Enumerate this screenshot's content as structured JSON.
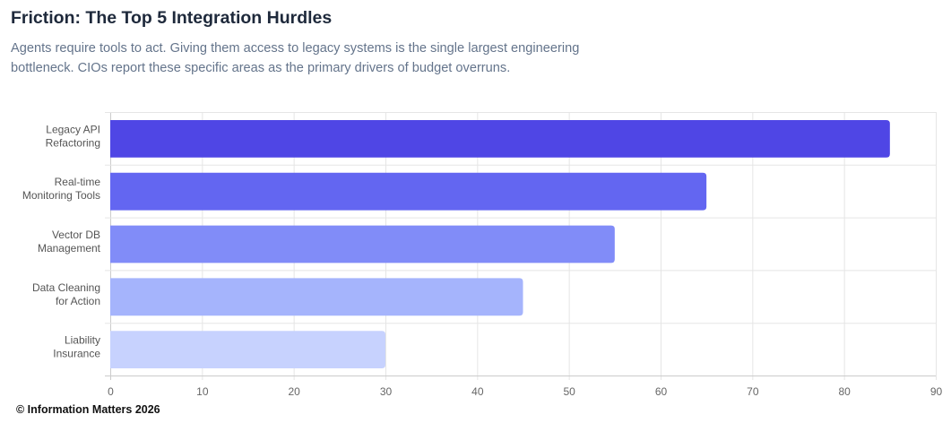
{
  "header": {
    "title": "Friction: The Top 5 Integration Hurdles",
    "subtitle": "Agents require tools to act. Giving them access to legacy systems is the single largest engineering bottleneck. CIOs report these specific areas as the primary drivers of budget overruns."
  },
  "footer": {
    "copyright": "© Information Matters 2026"
  },
  "chart_data": {
    "type": "bar",
    "orientation": "horizontal",
    "categories": [
      [
        "Legacy API",
        "Refactoring"
      ],
      [
        "Real-time",
        "Monitoring Tools"
      ],
      [
        "Vector DB",
        "Management"
      ],
      [
        "Data Cleaning",
        "for Action"
      ],
      [
        "Liability",
        "Insurance"
      ]
    ],
    "values": [
      85,
      65,
      55,
      45,
      30
    ],
    "colors": [
      "#4f46e5",
      "#6366f1",
      "#818cf8",
      "#a5b4fc",
      "#c7d2fe"
    ],
    "xlim": [
      0,
      90
    ],
    "xticks": [
      0,
      10,
      20,
      30,
      40,
      50,
      60,
      70,
      80,
      90
    ],
    "grid": true,
    "legend": "none",
    "title": "",
    "xlabel": "",
    "ylabel": ""
  }
}
